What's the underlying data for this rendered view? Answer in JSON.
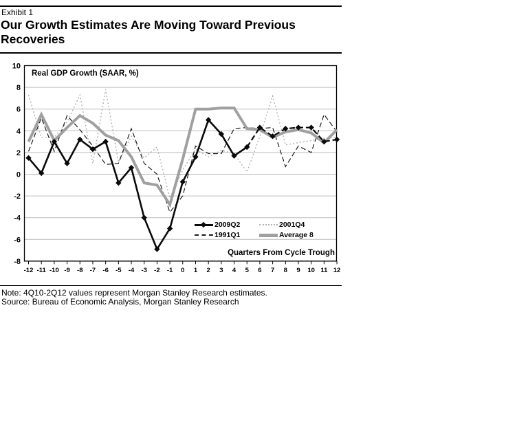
{
  "header": {
    "exhibit": "Exhibit 1",
    "title": "Our Growth Estimates Are Moving Toward Previous Recoveries"
  },
  "chart_data": {
    "type": "line",
    "title": "Real GDP Growth (SAAR, %)",
    "xlabel": "Quarters From Cycle Trough",
    "ylabel": "",
    "ylim": [
      -8,
      10
    ],
    "ytick_step": 2,
    "grid": "horizontal-light",
    "legend_position": "inside-bottom-right",
    "x": [
      -12,
      -11,
      -10,
      -9,
      -8,
      -7,
      -6,
      -5,
      -4,
      -3,
      -2,
      -1,
      0,
      1,
      2,
      3,
      4,
      5,
      6,
      7,
      8,
      9,
      10,
      11,
      12
    ],
    "series": [
      {
        "name": "2009Q2",
        "style": "solid-with-diamond-markers, dashed after estimate start",
        "color": "#0a0a0a",
        "estimate_from_x": 5,
        "values": [
          1.5,
          0.1,
          3.0,
          1.0,
          3.2,
          2.3,
          3.0,
          -0.8,
          0.6,
          -4.0,
          -6.9,
          -5.0,
          -0.7,
          1.6,
          5.0,
          3.7,
          1.7,
          2.5,
          4.3,
          3.5,
          4.2,
          4.3,
          4.3,
          3.0,
          3.2
        ]
      },
      {
        "name": "2001Q4",
        "style": "dotted",
        "color": "#b0b0b0",
        "values": [
          7.3,
          3.4,
          3.4,
          4.8,
          7.3,
          1.0,
          7.8,
          1.1,
          3.5,
          1.5,
          2.5,
          -2.2,
          0.4,
          2.3,
          1.6,
          2.2,
          1.9,
          0.2,
          3.5,
          7.2,
          2.7,
          2.9,
          3.1,
          3.3,
          3.4
        ]
      },
      {
        "name": "1991Q1",
        "style": "dashed",
        "color": "#1a1a1a",
        "values": [
          2.1,
          5.2,
          2.1,
          5.4,
          4.1,
          2.6,
          0.9,
          1.0,
          4.2,
          1.0,
          0.0,
          -3.5,
          -2.0,
          2.6,
          1.9,
          1.9,
          4.2,
          4.3,
          4.2,
          4.3,
          0.7,
          2.6,
          2.0,
          5.5,
          3.9
        ]
      },
      {
        "name": "Average 8",
        "style": "thick-solid",
        "color": "#a0a0a0",
        "values": [
          3.0,
          5.5,
          3.1,
          4.3,
          5.4,
          4.7,
          3.6,
          3.1,
          1.6,
          -0.8,
          -1.0,
          -2.8,
          1.4,
          6.0,
          6.0,
          6.1,
          6.1,
          4.2,
          4.1,
          3.4,
          3.9,
          4.1,
          3.8,
          2.9,
          4.1
        ]
      }
    ]
  },
  "notes": {
    "note": "Note: 4Q10-2Q12 values represent Morgan Stanley Research estimates.",
    "source": "Source: Bureau of Economic Analysis, Morgan Stanley Research"
  }
}
